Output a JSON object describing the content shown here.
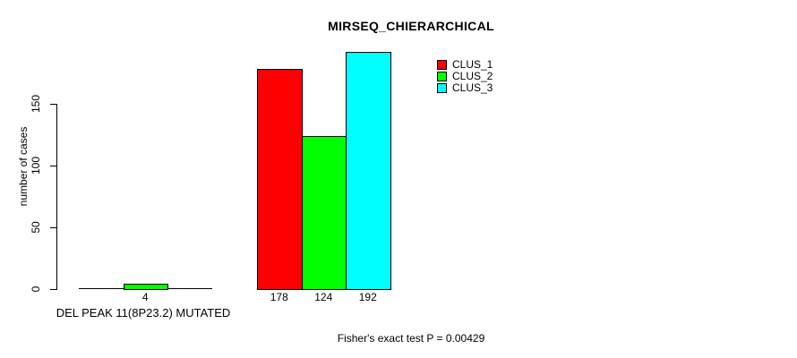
{
  "chart_data": {
    "type": "bar",
    "title": "MIRSEQ_CHIERARCHICAL",
    "ylabel": "number of cases",
    "xlabel": "DEL PEAK 11(8P23.2) MUTATED",
    "annotation": "Fisher's exact test P = 0.00429",
    "yticks": [
      0,
      50,
      100,
      150
    ],
    "ylim": [
      0,
      200
    ],
    "grid": false,
    "legend_position": "top-right",
    "series": [
      {
        "name": "CLUS_1",
        "color": "#ff0000"
      },
      {
        "name": "CLUS_2",
        "color": "#00ff00"
      },
      {
        "name": "CLUS_3",
        "color": "#00ffff"
      }
    ],
    "groups": [
      {
        "label": "DEL PEAK 11(8P23.2) MUTATED",
        "values": [
          0,
          4,
          0
        ],
        "value_labels": [
          "",
          "4",
          ""
        ]
      },
      {
        "label": "",
        "values": [
          178,
          124,
          192
        ],
        "value_labels": [
          "178",
          "124",
          "192"
        ]
      }
    ]
  }
}
